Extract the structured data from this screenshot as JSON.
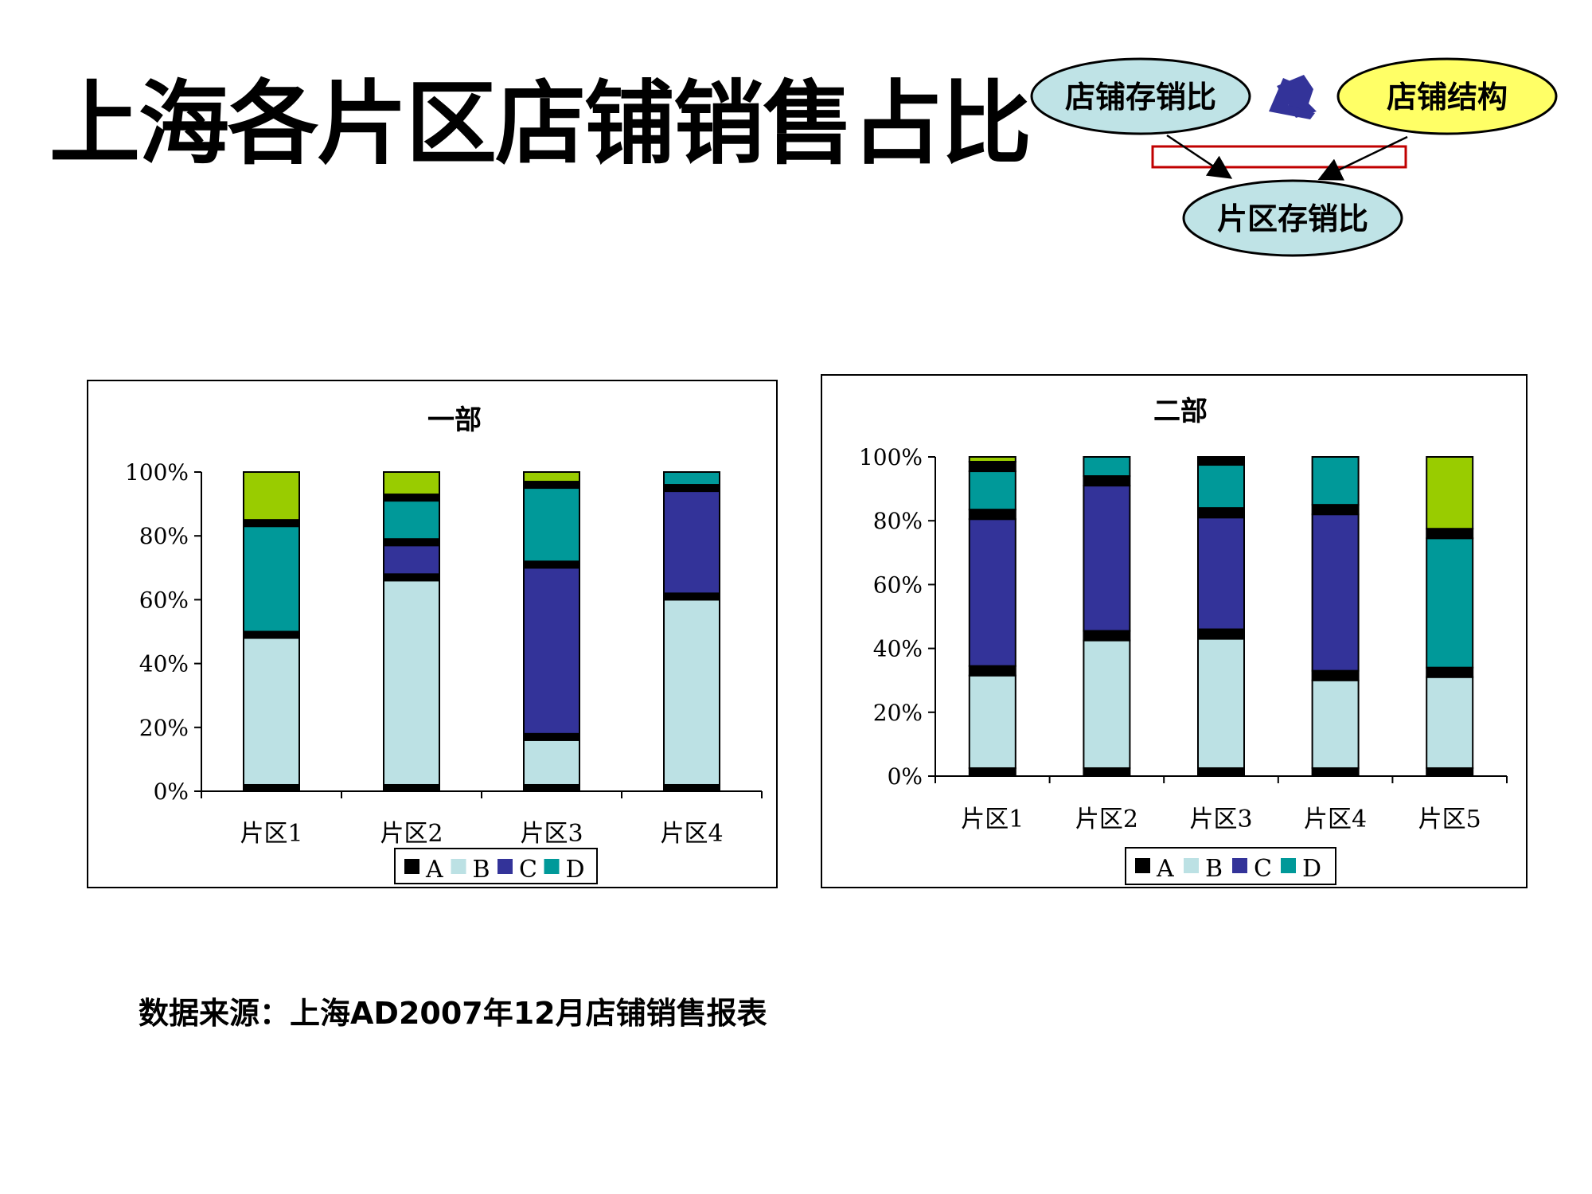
{
  "title": "上海各片区店铺销售占比",
  "diagram": {
    "node_store_ratio": "店铺存销比",
    "node_structure": "店铺结构",
    "node_area_ratio": "片区存销比"
  },
  "colors": {
    "A": "#000000",
    "B": "#bce1e4",
    "C": "#333399",
    "D": "#009999",
    "E": "#99cc00",
    "node_blue": "#bfe3e6",
    "node_yellow": "#ffff66",
    "cross": "#333399",
    "frame": "#c00000"
  },
  "source": "数据来源：上海AD2007年12月店铺销售报表",
  "chart_data": [
    {
      "type": "bar",
      "stacked": true,
      "percent": true,
      "title": "一部",
      "categories": [
        "片区1",
        "片区2",
        "片区3",
        "片区4"
      ],
      "yticks": [
        "0%",
        "20%",
        "40%",
        "60%",
        "80%",
        "100%"
      ],
      "ylim": [
        0,
        100
      ],
      "legend": [
        "A",
        "B",
        "C",
        "D"
      ],
      "legend_position": "bottom",
      "segments": [
        [
          2,
          46,
          2,
          33,
          2,
          15
        ],
        [
          2,
          64,
          2,
          9,
          2,
          12,
          2,
          7
        ],
        [
          2,
          14,
          2,
          52,
          2,
          23,
          2,
          3
        ],
        [
          2,
          58,
          2,
          32,
          2,
          4
        ]
      ],
      "segment_colors": [
        [
          "A",
          "B",
          "A",
          "D",
          "A",
          "E"
        ],
        [
          "A",
          "B",
          "A",
          "C",
          "A",
          "D",
          "A",
          "E"
        ],
        [
          "A",
          "B",
          "A",
          "C",
          "A",
          "D",
          "A",
          "E"
        ],
        [
          "A",
          "B",
          "A",
          "C",
          "A",
          "D"
        ]
      ]
    },
    {
      "type": "bar",
      "stacked": true,
      "percent": true,
      "title": "二部",
      "categories": [
        "片区1",
        "片区2",
        "片区3",
        "片区4",
        "片区5"
      ],
      "yticks": [
        "0%",
        "20%",
        "40%",
        "60%",
        "80%",
        "100%"
      ],
      "ylim": [
        0,
        100
      ],
      "legend": [
        "A",
        "B",
        "C",
        "D"
      ],
      "legend_position": "bottom",
      "segments": [
        [
          2.5,
          29,
          3,
          46,
          3,
          12,
          3,
          1.5
        ],
        [
          2.5,
          40,
          3,
          45.5,
          3,
          6
        ],
        [
          2.5,
          40.5,
          3,
          35,
          3,
          13.5,
          2.5
        ],
        [
          2.5,
          27.5,
          3,
          49,
          3,
          15
        ],
        [
          2.5,
          28.5,
          3,
          40.5,
          3,
          22.5
        ]
      ],
      "segment_colors": [
        [
          "A",
          "B",
          "A",
          "C",
          "A",
          "D",
          "A",
          "E"
        ],
        [
          "A",
          "B",
          "A",
          "C",
          "A",
          "D"
        ],
        [
          "A",
          "B",
          "A",
          "C",
          "A",
          "D",
          "A"
        ],
        [
          "A",
          "B",
          "A",
          "C",
          "A",
          "D"
        ],
        [
          "A",
          "B",
          "A",
          "D",
          "A",
          "E"
        ]
      ]
    }
  ]
}
